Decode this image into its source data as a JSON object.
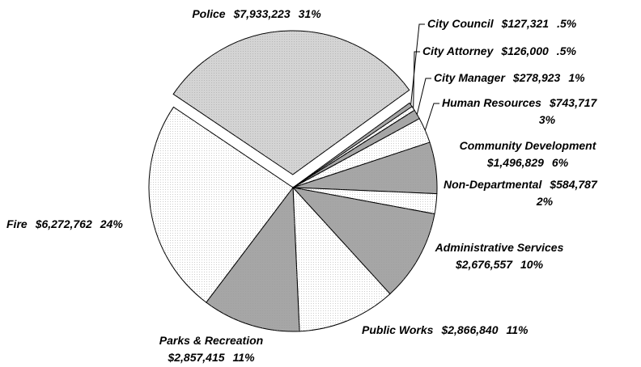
{
  "chart_data": {
    "type": "pie",
    "categories": [
      "Police",
      "City Council",
      "City Attorney",
      "City Manager",
      "Human Resources",
      "Community Development",
      "Non-Departmental",
      "Administrative Services",
      "Public Works",
      "Parks & Recreation",
      "Fire"
    ],
    "values": [
      7933223,
      127321,
      126000,
      278923,
      743717,
      1496829,
      584787,
      2676557,
      2866840,
      2857415,
      6272762
    ],
    "value_labels": [
      "$7,933,223",
      "$127,321",
      "$126,000",
      "$278,923",
      "$743,717",
      "$1,496,829",
      "$584,787",
      "$2,676,557",
      "$2,866,840",
      "$2,857,415",
      "$6,272,762"
    ],
    "percent_labels": [
      "31%",
      ".5%",
      ".5%",
      "1%",
      "3%",
      "6%",
      "2%",
      "10%",
      "11%",
      "11%",
      "24%"
    ],
    "colors": [
      "#d4d4d4",
      "#a6a6a6",
      "#ffffff",
      "#a6a6a6",
      "#ffffff",
      "#a6a6a6",
      "#ffffff",
      "#a6a6a6",
      "#ffffff",
      "#a6a6a6",
      "#ffffff"
    ],
    "exploded": "Police"
  }
}
